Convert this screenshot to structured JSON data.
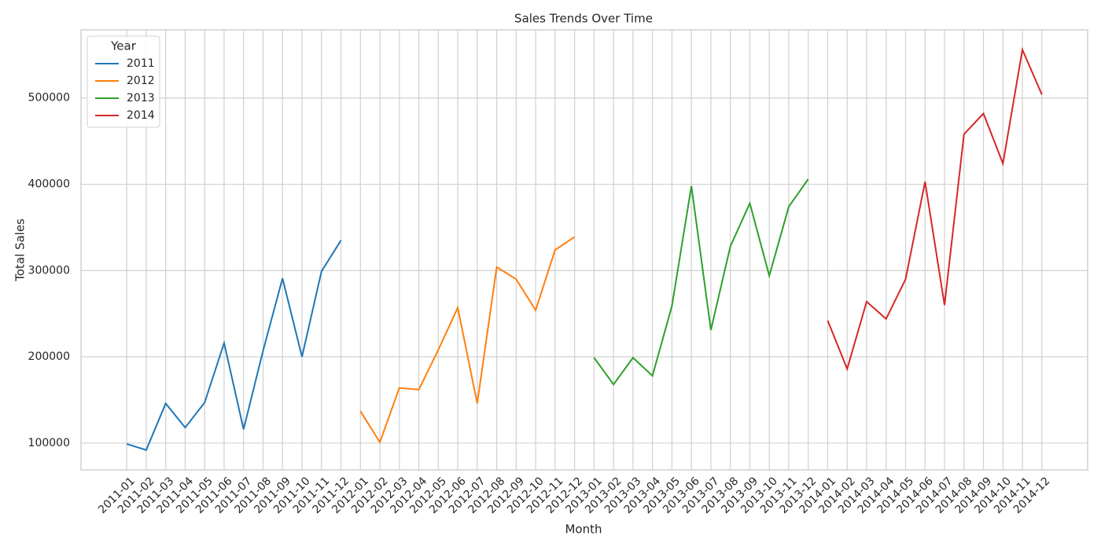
{
  "chart_data": {
    "type": "line",
    "title": "Sales Trends Over Time",
    "x_label": "Month",
    "y_label": "Total Sales",
    "categories": [
      "2011-01",
      "2011-02",
      "2011-03",
      "2011-04",
      "2011-05",
      "2011-06",
      "2011-07",
      "2011-08",
      "2011-09",
      "2011-10",
      "2011-11",
      "2011-12",
      "2012-01",
      "2012-02",
      "2012-03",
      "2012-04",
      "2012-05",
      "2012-06",
      "2012-07",
      "2012-08",
      "2012-09",
      "2012-10",
      "2012-11",
      "2012-12",
      "2013-01",
      "2013-02",
      "2013-03",
      "2013-04",
      "2013-05",
      "2013-06",
      "2013-07",
      "2013-08",
      "2013-09",
      "2013-10",
      "2013-11",
      "2013-12",
      "2014-01",
      "2014-02",
      "2014-03",
      "2014-04",
      "2014-05",
      "2014-06",
      "2014-07",
      "2014-08",
      "2014-09",
      "2014-10",
      "2014-11",
      "2014-12"
    ],
    "series": [
      {
        "name": "2011",
        "color": "#1f77b4",
        "values": [
          99000,
          92000,
          146000,
          118000,
          147000,
          216000,
          116000,
          207000,
          291000,
          200000,
          299000,
          335000,
          null,
          null,
          null,
          null,
          null,
          null,
          null,
          null,
          null,
          null,
          null,
          null,
          null,
          null,
          null,
          null,
          null,
          null,
          null,
          null,
          null,
          null,
          null,
          null,
          null,
          null,
          null,
          null,
          null,
          null,
          null,
          null,
          null,
          null,
          null,
          null
        ]
      },
      {
        "name": "2012",
        "color": "#ff7f0e",
        "values": [
          null,
          null,
          null,
          null,
          null,
          null,
          null,
          null,
          null,
          null,
          null,
          null,
          137000,
          101000,
          164000,
          162000,
          208000,
          257000,
          146000,
          304000,
          290000,
          254000,
          324000,
          339000,
          null,
          null,
          null,
          null,
          null,
          null,
          null,
          null,
          null,
          null,
          null,
          null,
          null,
          null,
          null,
          null,
          null,
          null,
          null,
          null,
          null,
          null,
          null,
          null
        ]
      },
      {
        "name": "2013",
        "color": "#2ca02c",
        "values": [
          null,
          null,
          null,
          null,
          null,
          null,
          null,
          null,
          null,
          null,
          null,
          null,
          null,
          null,
          null,
          null,
          null,
          null,
          null,
          null,
          null,
          null,
          null,
          null,
          199000,
          168000,
          199000,
          178000,
          259000,
          398000,
          231000,
          328000,
          378000,
          294000,
          374000,
          406000,
          null,
          null,
          null,
          null,
          null,
          null,
          null,
          null,
          null,
          null,
          null,
          null
        ]
      },
      {
        "name": "2014",
        "color": "#d62728",
        "values": [
          null,
          null,
          null,
          null,
          null,
          null,
          null,
          null,
          null,
          null,
          null,
          null,
          null,
          null,
          null,
          null,
          null,
          null,
          null,
          null,
          null,
          null,
          null,
          null,
          null,
          null,
          null,
          null,
          null,
          null,
          null,
          null,
          null,
          null,
          null,
          null,
          242000,
          186000,
          264000,
          244000,
          290000,
          403000,
          260000,
          458000,
          482000,
          424000,
          556000,
          504000
        ]
      }
    ],
    "legend_title": "Year",
    "legend": "upper left",
    "ylim": [
      69000,
      579000
    ],
    "yticks": [
      100000,
      200000,
      300000,
      400000,
      500000
    ],
    "grid": true
  }
}
